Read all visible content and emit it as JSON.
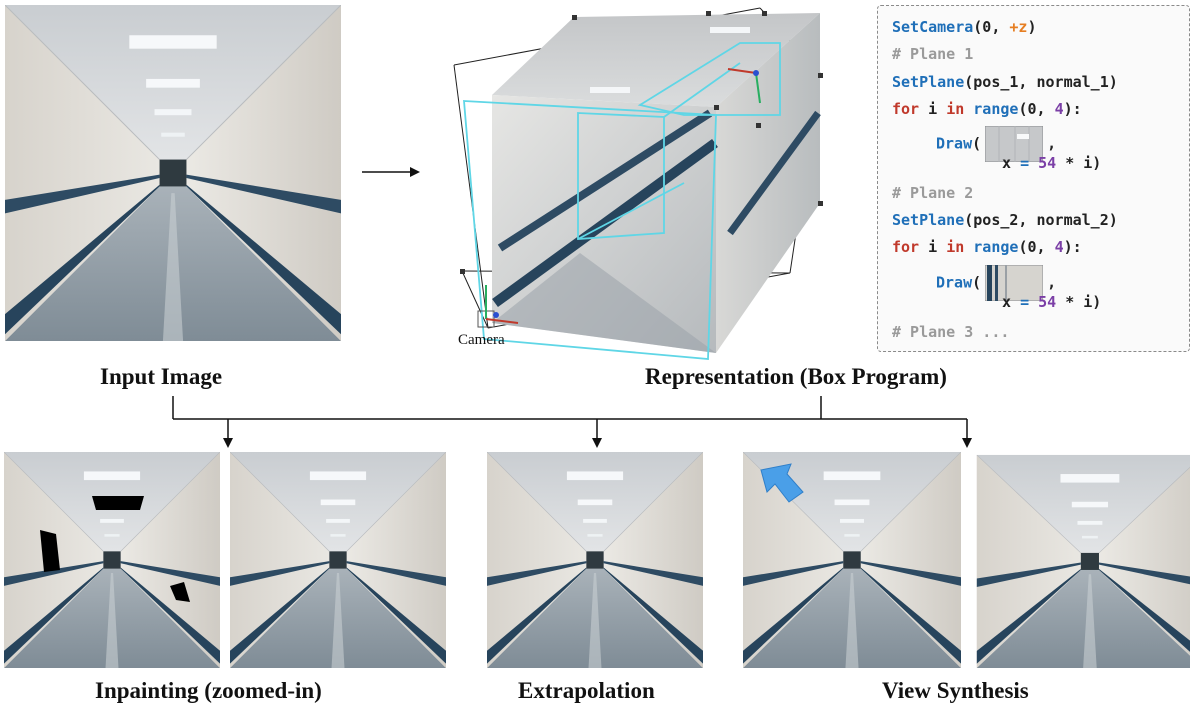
{
  "captions": {
    "input": "Input Image",
    "representation": "Representation (Box Program)",
    "inpainting": "Inpainting (zoomed-in)",
    "extrapolation": "Extrapolation",
    "view_synthesis": "View Synthesis"
  },
  "camera_label": "Camera",
  "code": {
    "l1_fn": "SetCamera",
    "l1_a": "(0, ",
    "l1_b": "+z",
    "l1_c": ")",
    "l2": "# Plane 1",
    "l3_fn": "SetPlane",
    "l3_a": "(pos_1, normal_1)",
    "l4_kw1": "for",
    "l4_a": " i ",
    "l4_kw2": "in",
    "l4_fn": " range",
    "l4_b": "(0, ",
    "l4_num": "4",
    "l4_c": "):",
    "l5_fn": "Draw",
    "l5_a": "(",
    "l5_b": ",",
    "l6_a": "x ",
    "l6_eq": "=",
    "l6_num": " 54",
    "l6_b": " * i)",
    "l7": "# Plane 2",
    "l8_fn": "SetPlane",
    "l8_a": "(pos_2, normal_2)",
    "l9_kw1": "for",
    "l9_a": " i ",
    "l9_kw2": "in",
    "l9_fn": " range",
    "l9_b": "(0, ",
    "l9_num": "4",
    "l9_c": "):",
    "l10_fn": "Draw",
    "l10_a": "(",
    "l10_b": ",",
    "l11_a": "x ",
    "l11_eq": "=",
    "l11_num": " 54",
    "l11_b": " * i)",
    "l12": "# Plane 3 ..."
  },
  "colors": {
    "function": "#1f6fb8",
    "comment": "#9a9a9a",
    "keyword": "#c0392b",
    "number": "#7b3fa6",
    "operator": "#e67e22",
    "wireframe": "#5fd6e6",
    "mask": "#000000",
    "arrow_overlay": "#4a9fe8"
  }
}
